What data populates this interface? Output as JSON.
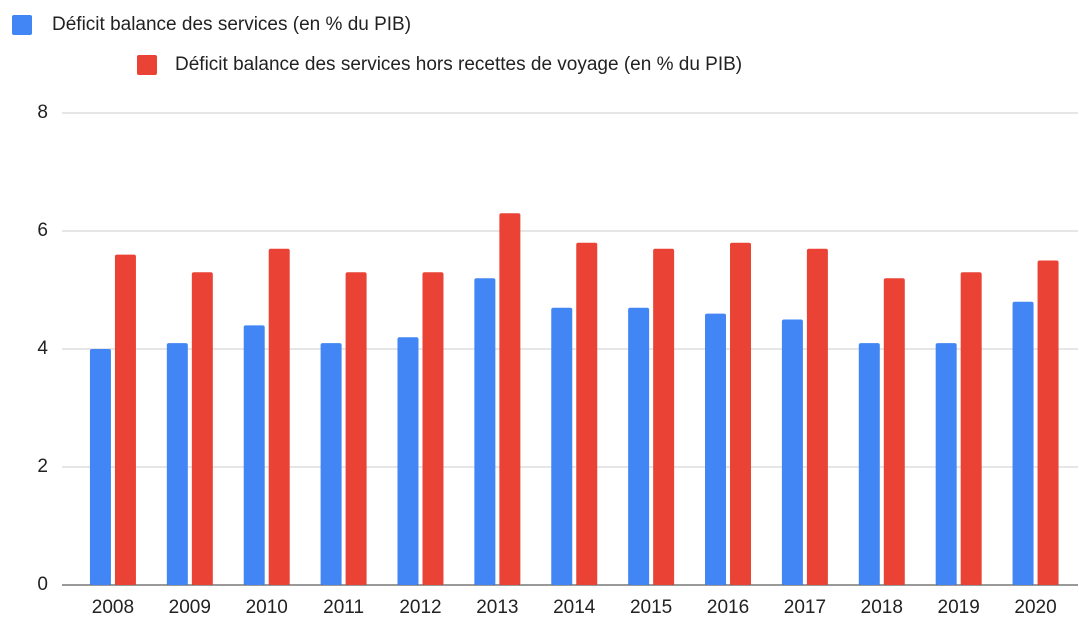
{
  "chart_data": {
    "type": "bar",
    "categories": [
      "2008",
      "2009",
      "2010",
      "2011",
      "2012",
      "2013",
      "2014",
      "2015",
      "2016",
      "2017",
      "2018",
      "2019",
      "2020"
    ],
    "series": [
      {
        "name": "Déficit balance des services (en % du PIB)",
        "color": "#4285f4",
        "values": [
          4.0,
          4.1,
          4.4,
          4.1,
          4.2,
          5.2,
          4.7,
          4.7,
          4.6,
          4.5,
          4.1,
          4.1,
          4.8
        ]
      },
      {
        "name": "Déficit balance des services hors recettes de voyage (en % du PIB)",
        "color": "#ea4335",
        "values": [
          5.6,
          5.3,
          5.7,
          5.3,
          5.3,
          6.3,
          5.8,
          5.7,
          5.8,
          5.7,
          5.2,
          5.3,
          5.5
        ]
      }
    ],
    "ylim": [
      0,
      8
    ],
    "yticks": [
      0,
      2,
      4,
      6,
      8
    ],
    "grid": true,
    "legend": "top"
  }
}
